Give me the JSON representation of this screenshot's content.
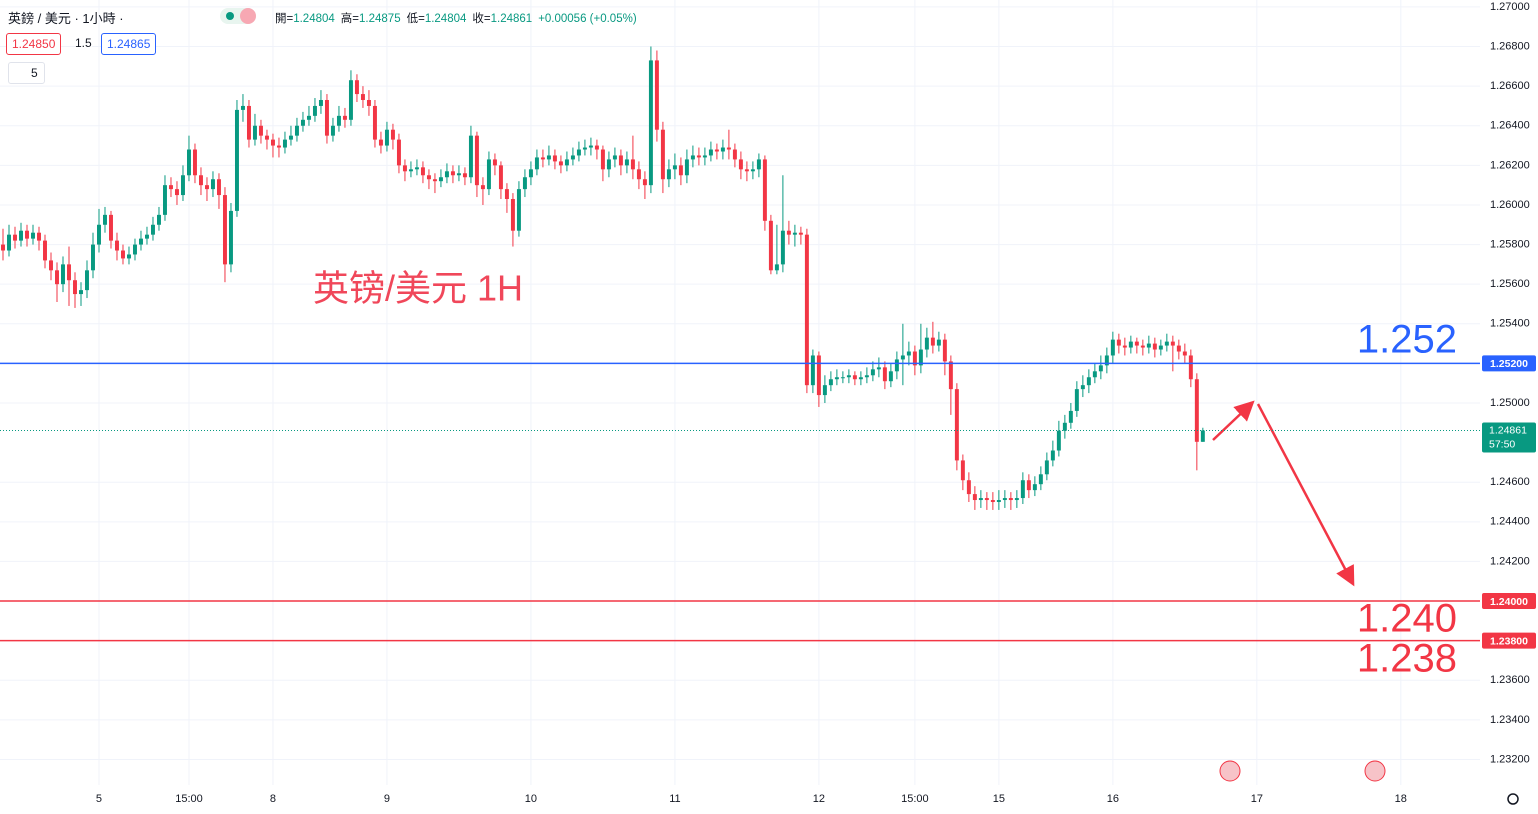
{
  "header": {
    "symbol": "英鎊 / 美元 · 1小時 ·",
    "ohlc": [
      "開=",
      "1.24804",
      "高=",
      "1.24875",
      "低=",
      "1.24804",
      "收=",
      "1.24861",
      "+0.00056 (+0.05%)"
    ],
    "sell": "1.24850",
    "spread": "1.5",
    "buy": "1.24865",
    "interval": "5"
  },
  "chart_data": {
    "type": "candlestick",
    "title": "英镑/美元 1H",
    "up_color": "#089981",
    "down_color": "#f23645",
    "open": [
      1.258,
      1.2577,
      1.2585,
      1.2582,
      1.2587,
      1.2583,
      1.2586,
      1.2582,
      1.2572,
      1.2567,
      1.256,
      1.257,
      1.2562,
      1.2555,
      1.2557,
      1.2567,
      1.258,
      1.259,
      1.2595,
      1.2582,
      1.2577,
      1.2573,
      1.2575,
      1.258,
      1.2583,
      1.2585,
      1.259,
      1.2595,
      1.261,
      1.2608,
      1.2605,
      1.2615,
      1.2628,
      1.2615,
      1.261,
      1.2608,
      1.2613,
      1.2605,
      1.257,
      1.2597,
      1.2648,
      1.265,
      1.2633,
      1.264,
      1.2635,
      1.2633,
      1.263,
      1.2629,
      1.2633,
      1.2635,
      1.264,
      1.2643,
      1.2645,
      1.265,
      1.2653,
      1.2635,
      1.264,
      1.2645,
      1.2643,
      1.2663,
      1.2656,
      1.2653,
      1.265,
      1.2633,
      1.263,
      1.2638,
      1.2633,
      1.262,
      1.2617,
      1.2618,
      1.2619,
      1.2615,
      1.2613,
      1.2612,
      1.2614,
      1.2617,
      1.2615,
      1.2616,
      1.2614,
      1.2635,
      1.261,
      1.2608,
      1.2623,
      1.262,
      1.2608,
      1.2603,
      1.2587,
      1.2608,
      1.2614,
      1.2618,
      1.2624,
      1.2623,
      1.2625,
      1.2622,
      1.262,
      1.2623,
      1.2625,
      1.2628,
      1.2629,
      1.263,
      1.2628,
      1.2618,
      1.2623,
      1.2625,
      1.262,
      1.2623,
      1.2618,
      1.2613,
      1.261,
      1.2673,
      1.2638,
      1.2613,
      1.2618,
      1.262,
      1.2615,
      1.2623,
      1.2625,
      1.2624,
      1.2625,
      1.2628,
      1.2627,
      1.2629,
      1.2628,
      1.2623,
      1.2618,
      1.2617,
      1.2618,
      1.2623,
      1.2592,
      1.2567,
      1.257,
      1.2587,
      1.2585,
      1.2586,
      1.2585,
      1.2509,
      1.2524,
      1.2504,
      1.2509,
      1.2512,
      1.2513,
      1.2513,
      1.2514,
      1.2512,
      1.2513,
      1.2514,
      1.2517,
      1.2518,
      1.2511,
      1.2516,
      1.2522,
      1.2524,
      1.2526,
      1.2519,
      1.2527,
      1.2533,
      1.2529,
      1.2532,
      1.2521,
      1.2507,
      1.2471,
      1.2461,
      1.2454,
      1.2451,
      1.2452,
      1.2451,
      1.245,
      1.2451,
      1.2452,
      1.2451,
      1.2452,
      1.2461,
      1.2456,
      1.2459,
      1.2464,
      1.2471,
      1.2476,
      1.2486,
      1.249,
      1.2496,
      1.2507,
      1.2509,
      1.2513,
      1.2516,
      1.2519,
      1.2524,
      1.2532,
      1.2529,
      1.2528,
      1.2531,
      1.2529,
      1.2528,
      1.253,
      1.2527,
      1.2529,
      1.2531,
      1.2529,
      1.2526,
      1.2524,
      1.2512,
      1.24804
    ],
    "high": [
      1.2588,
      1.259,
      1.2589,
      1.2591,
      1.259,
      1.259,
      1.2589,
      1.2585,
      1.2576,
      1.2571,
      1.2574,
      1.2579,
      1.2566,
      1.2561,
      1.2572,
      1.2586,
      1.2598,
      1.2599,
      1.2597,
      1.2586,
      1.258,
      1.2579,
      1.2583,
      1.2587,
      1.2589,
      1.2594,
      1.2599,
      1.2615,
      1.2614,
      1.2612,
      1.262,
      1.2635,
      1.2631,
      1.2619,
      1.2614,
      1.2617,
      1.2616,
      1.2609,
      1.2601,
      1.2653,
      1.2656,
      1.2653,
      1.2646,
      1.2643,
      1.2638,
      1.2636,
      1.2634,
      1.2637,
      1.264,
      1.2644,
      1.2647,
      1.265,
      1.2654,
      1.2658,
      1.2656,
      1.2644,
      1.265,
      1.2649,
      1.2668,
      1.2666,
      1.266,
      1.2658,
      1.2653,
      1.2637,
      1.2642,
      1.2641,
      1.2636,
      1.2623,
      1.2622,
      1.2623,
      1.2622,
      1.2618,
      1.2616,
      1.2618,
      1.2621,
      1.262,
      1.262,
      1.2619,
      1.264,
      1.2637,
      1.2614,
      1.2627,
      1.2626,
      1.2622,
      1.2611,
      1.2606,
      1.2612,
      1.2618,
      1.2622,
      1.2628,
      1.2628,
      1.263,
      1.2628,
      1.2625,
      1.2627,
      1.2629,
      1.2632,
      1.2633,
      1.2634,
      1.2633,
      1.263,
      1.2627,
      1.2629,
      1.2628,
      1.2627,
      1.2635,
      1.2622,
      1.2617,
      1.268,
      1.2678,
      1.2642,
      1.2623,
      1.2626,
      1.2624,
      1.2628,
      1.263,
      1.2629,
      1.2629,
      1.2632,
      1.2631,
      1.2633,
      1.2638,
      1.2631,
      1.2627,
      1.2622,
      1.2622,
      1.2626,
      1.2625,
      1.2595,
      1.259,
      1.2615,
      1.2592,
      1.259,
      1.2589,
      1.2588,
      1.2527,
      1.2526,
      1.2514,
      1.2516,
      1.2517,
      1.2516,
      1.2517,
      1.2516,
      1.2516,
      1.2518,
      1.2521,
      1.2523,
      1.2521,
      1.252,
      1.2526,
      1.254,
      1.2531,
      1.2529,
      1.254,
      1.2538,
      1.2541,
      1.2536,
      1.2535,
      1.2524,
      1.251,
      1.2474,
      1.2465,
      1.2458,
      1.2456,
      1.2455,
      1.2455,
      1.2456,
      1.2456,
      1.2455,
      1.2456,
      1.2465,
      1.2464,
      1.2463,
      1.2468,
      1.2475,
      1.2481,
      1.2491,
      1.2494,
      1.25,
      1.2511,
      1.2514,
      1.2517,
      1.252,
      1.2524,
      1.2528,
      1.2536,
      1.2535,
      1.2533,
      1.2534,
      1.2533,
      1.2532,
      1.2534,
      1.2533,
      1.2532,
      1.2535,
      1.2534,
      1.2532,
      1.253,
      1.2527,
      1.2515,
      1.24875
    ],
    "low": [
      1.2572,
      1.2574,
      1.2578,
      1.2579,
      1.2579,
      1.258,
      1.2577,
      1.2568,
      1.2562,
      1.2551,
      1.2556,
      1.2549,
      1.2548,
      1.2549,
      1.2553,
      1.2563,
      1.2576,
      1.2586,
      1.2578,
      1.2572,
      1.257,
      1.257,
      1.2572,
      1.2577,
      1.258,
      1.2582,
      1.2587,
      1.2592,
      1.2604,
      1.26,
      1.2602,
      1.2612,
      1.2611,
      1.2605,
      1.2602,
      1.2604,
      1.2598,
      1.2561,
      1.2566,
      1.2594,
      1.2642,
      1.2629,
      1.263,
      1.2631,
      1.2628,
      1.2624,
      1.2624,
      1.2626,
      1.263,
      1.2632,
      1.2637,
      1.264,
      1.2642,
      1.2646,
      1.2631,
      1.2632,
      1.2637,
      1.2639,
      1.264,
      1.2652,
      1.2649,
      1.2645,
      1.2629,
      1.2626,
      1.2627,
      1.2628,
      1.2616,
      1.2612,
      1.2614,
      1.2615,
      1.2611,
      1.2608,
      1.2606,
      1.2609,
      1.2611,
      1.2611,
      1.2612,
      1.261,
      1.2611,
      1.2604,
      1.26,
      1.2605,
      1.2615,
      1.2603,
      1.2596,
      1.2579,
      1.2584,
      1.2604,
      1.261,
      1.2615,
      1.2619,
      1.262,
      1.2618,
      1.2616,
      1.2617,
      1.262,
      1.2622,
      1.2625,
      1.2625,
      1.2623,
      1.2612,
      1.2614,
      1.2619,
      1.2615,
      1.2616,
      1.2613,
      1.2608,
      1.2603,
      1.2606,
      1.2632,
      1.2606,
      1.2609,
      1.2613,
      1.261,
      1.2611,
      1.2619,
      1.262,
      1.262,
      1.2622,
      1.2623,
      1.2623,
      1.2623,
      1.2619,
      1.2613,
      1.2612,
      1.2613,
      1.2614,
      1.2587,
      1.2565,
      1.2565,
      1.2566,
      1.258,
      1.2579,
      1.258,
      1.2505,
      1.2505,
      1.2498,
      1.25,
      1.2506,
      1.2509,
      1.251,
      1.251,
      1.2509,
      1.2509,
      1.251,
      1.2511,
      1.2513,
      1.2507,
      1.2508,
      1.2512,
      1.2509,
      1.2519,
      1.2514,
      1.2515,
      1.2523,
      1.2525,
      1.2526,
      1.2514,
      1.2494,
      1.2466,
      1.2456,
      1.245,
      1.2446,
      1.2447,
      1.2446,
      1.2446,
      1.2446,
      1.2447,
      1.2446,
      1.2447,
      1.2449,
      1.2452,
      1.2453,
      1.2456,
      1.2461,
      1.2468,
      1.2473,
      1.2482,
      1.2487,
      1.2493,
      1.2503,
      1.2505,
      1.251,
      1.2512,
      1.2515,
      1.252,
      1.2525,
      1.2524,
      1.2525,
      1.2525,
      1.2524,
      1.2525,
      1.2523,
      1.2524,
      1.2526,
      1.2516,
      1.2522,
      1.252,
      1.2508,
      1.2466,
      1.24804
    ],
    "close": [
      1.2577,
      1.2585,
      1.2582,
      1.2587,
      1.2583,
      1.2586,
      1.2582,
      1.2572,
      1.2567,
      1.256,
      1.257,
      1.2562,
      1.2555,
      1.2557,
      1.2567,
      1.258,
      1.259,
      1.2595,
      1.2582,
      1.2577,
      1.2573,
      1.2575,
      1.258,
      1.2583,
      1.2585,
      1.259,
      1.2595,
      1.261,
      1.2608,
      1.2605,
      1.2615,
      1.2628,
      1.2615,
      1.261,
      1.2608,
      1.2613,
      1.2605,
      1.257,
      1.2597,
      1.2648,
      1.265,
      1.2633,
      1.264,
      1.2635,
      1.2633,
      1.263,
      1.2629,
      1.2633,
      1.2635,
      1.264,
      1.2643,
      1.2645,
      1.265,
      1.2653,
      1.2635,
      1.264,
      1.2645,
      1.2643,
      1.2663,
      1.2656,
      1.2653,
      1.265,
      1.2633,
      1.263,
      1.2638,
      1.2633,
      1.262,
      1.2617,
      1.2618,
      1.2619,
      1.2615,
      1.2613,
      1.2612,
      1.2614,
      1.2617,
      1.2615,
      1.2616,
      1.2614,
      1.2635,
      1.261,
      1.2608,
      1.2623,
      1.262,
      1.2608,
      1.2603,
      1.2587,
      1.2608,
      1.2614,
      1.2618,
      1.2624,
      1.2623,
      1.2625,
      1.2622,
      1.262,
      1.2623,
      1.2625,
      1.2628,
      1.2629,
      1.263,
      1.2628,
      1.2618,
      1.2623,
      1.2625,
      1.262,
      1.2623,
      1.2618,
      1.2613,
      1.261,
      1.2673,
      1.2638,
      1.2613,
      1.2618,
      1.262,
      1.2615,
      1.2623,
      1.2625,
      1.2624,
      1.2625,
      1.2628,
      1.2627,
      1.2629,
      1.2628,
      1.2623,
      1.2618,
      1.2617,
      1.2618,
      1.2623,
      1.2592,
      1.2567,
      1.257,
      1.2587,
      1.2585,
      1.2586,
      1.2585,
      1.2509,
      1.2524,
      1.2504,
      1.2509,
      1.2512,
      1.2513,
      1.2513,
      1.2514,
      1.2512,
      1.2513,
      1.2514,
      1.2517,
      1.2518,
      1.2511,
      1.2516,
      1.2522,
      1.2524,
      1.2526,
      1.2519,
      1.2527,
      1.2533,
      1.2529,
      1.2532,
      1.2521,
      1.2507,
      1.2471,
      1.2461,
      1.2454,
      1.2451,
      1.2452,
      1.2451,
      1.245,
      1.2451,
      1.2452,
      1.2451,
      1.2452,
      1.2461,
      1.2456,
      1.2459,
      1.2464,
      1.2471,
      1.2476,
      1.2486,
      1.249,
      1.2496,
      1.2507,
      1.2509,
      1.2513,
      1.2516,
      1.2519,
      1.2524,
      1.2532,
      1.2529,
      1.2528,
      1.2531,
      1.2529,
      1.2528,
      1.253,
      1.2527,
      1.2529,
      1.2531,
      1.2529,
      1.2526,
      1.2524,
      1.2512,
      1.24804,
      1.24861
    ],
    "xlim": [
      -0.5,
      246.2
    ],
    "xticks": [
      {
        "value": 16,
        "label": "5"
      },
      {
        "value": 31,
        "label": "15:00"
      },
      {
        "value": 45,
        "label": "8"
      },
      {
        "value": 64,
        "label": "9"
      },
      {
        "value": 88,
        "label": "10"
      },
      {
        "value": 112,
        "label": "11"
      },
      {
        "value": 136,
        "label": "12"
      },
      {
        "value": 152,
        "label": "15:00"
      },
      {
        "value": 166,
        "label": "15"
      },
      {
        "value": 185,
        "label": "16"
      },
      {
        "value": 209,
        "label": "17"
      },
      {
        "value": 233,
        "label": "18"
      }
    ],
    "ylim": [
      1.23071,
      1.27035
    ],
    "yticks": [
      {
        "value": 1.27,
        "label": "1.27000"
      },
      {
        "value": 1.268,
        "label": "1.26800"
      },
      {
        "value": 1.266,
        "label": "1.26600"
      },
      {
        "value": 1.264,
        "label": "1.26400"
      },
      {
        "value": 1.262,
        "label": "1.26200"
      },
      {
        "value": 1.26,
        "label": "1.26000"
      },
      {
        "value": 1.258,
        "label": "1.25800"
      },
      {
        "value": 1.256,
        "label": "1.25600"
      },
      {
        "value": 1.254,
        "label": "1.25400"
      },
      {
        "value": 1.25,
        "label": "1.25000"
      },
      {
        "value": 1.246,
        "label": "1.24600"
      },
      {
        "value": 1.244,
        "label": "1.24400"
      },
      {
        "value": 1.242,
        "label": "1.24200"
      },
      {
        "value": 1.236,
        "label": "1.23600"
      },
      {
        "value": 1.234,
        "label": "1.23400"
      },
      {
        "value": 1.232,
        "label": "1.23200"
      }
    ],
    "grid": true,
    "hlines": [
      {
        "value": 1.252,
        "label": "1.25200",
        "color": "#2962ff"
      },
      {
        "value": 1.24,
        "label": "1.24000",
        "color": "#f23645"
      },
      {
        "value": 1.238,
        "label": "1.23800",
        "color": "#f23645"
      }
    ],
    "last_price": {
      "value": 1.24861,
      "label": "1.24861",
      "countdown": "57:50",
      "color": "#089981"
    },
    "annotations": [
      "1.252",
      "1.240",
      "1.238"
    ]
  }
}
